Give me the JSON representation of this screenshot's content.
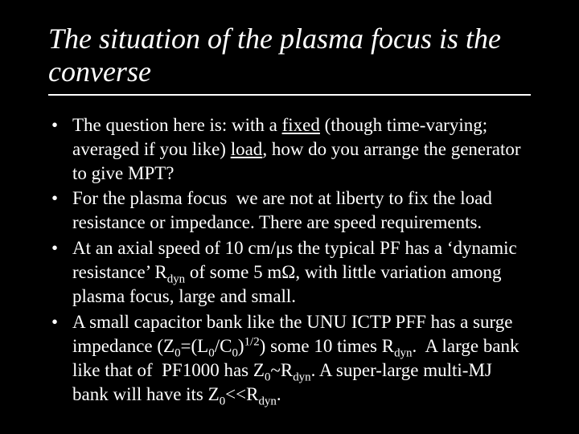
{
  "slide": {
    "background": "#000000",
    "text_color": "#ffffff",
    "font_family": "Times New Roman",
    "title": {
      "text": "The situation of the plasma focus is the converse",
      "font_style": "italic",
      "font_size_pt": 36,
      "underline_rule": true
    },
    "bullets": {
      "font_size_pt": 23,
      "items": [
        {
          "text_html": " The question here is: with a <span class=\"u\">fixed</span> (though time-varying; averaged if you like) <span class=\"u\">load</span>, how do you arrange the generator to give MPT?"
        },
        {
          "text_html": "For the plasma focus  we are not at liberty to fix the load resistance or impedance. There are speed requirements."
        },
        {
          "text_html": " At an axial speed of 10 cm/μs the typical PF has a ‘dynamic resistance’ R<span class=\"sub\">dyn</span> of some 5 mΩ, with little variation among plasma focus, large and small."
        },
        {
          "text_html": "A small capacitor bank like the UNU ICTP PFF has a surge impedance (Z<span class=\"sub\">0</span>=(L<span class=\"sub\">0</span>/C<span class=\"sub\">0</span>)<span class=\"sup\">1/2</span>) some 10 times R<span class=\"sub\">dyn</span>.  A large bank like that of  PF1000 has Z<span class=\"sub\">0</span>~R<span class=\"sub\">dyn</span>. A super-large multi-MJ bank will have its Z<span class=\"sub\">0</span>&lt;&lt;R<span class=\"sub\">dyn</span>."
        }
      ]
    }
  }
}
